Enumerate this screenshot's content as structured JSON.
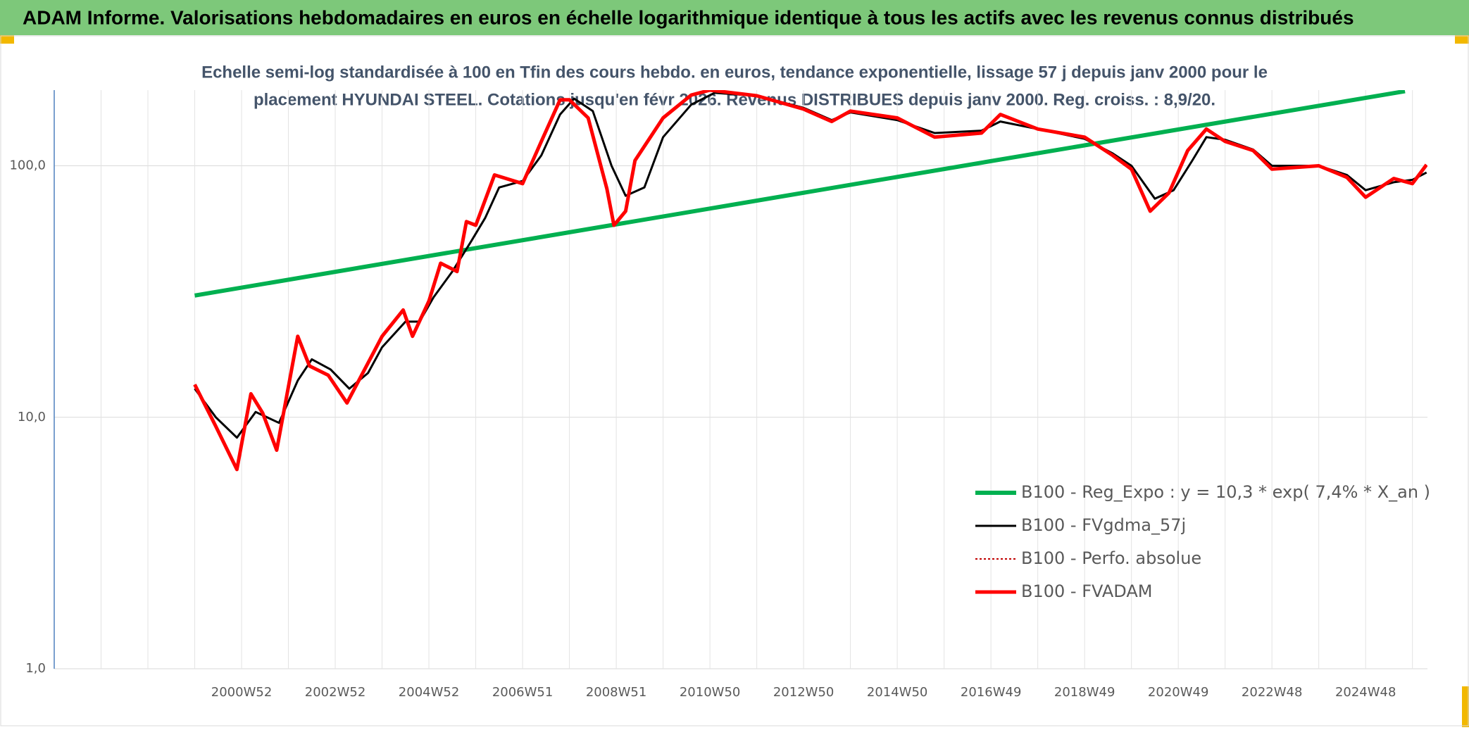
{
  "chart_data": {
    "type": "line",
    "title": "ADAM Informe. Valorisations hebdomadaires en euros en échelle logarithmique identique à tous les actifs avec les revenus connus distribués",
    "subtitle": [
      "Echelle semi-log standardisée à 100 en Tfin des cours hebdo. en euros, tendance exponentielle, lissage 57 j depuis janv 2000 pour le",
      "placement HYUNDAI STEEL. Cotations jusqu'en févr 2026. Revenus DISTRIBUES depuis janv 2000. Reg. croiss. : 8,9/20."
    ],
    "log_scale": true,
    "grid": true,
    "ylim": [
      1,
      200
    ],
    "yticks": [
      {
        "value": 1,
        "label": "1,0"
      },
      {
        "value": 10,
        "label": "10,0"
      },
      {
        "value": 100,
        "label": "100,0"
      }
    ],
    "xlim": [
      1997,
      2026.32
    ],
    "xgrid": [
      1998,
      1999,
      2000,
      2001,
      2002,
      2003,
      2004,
      2005,
      2006,
      2007,
      2008,
      2009,
      2010,
      2011,
      2012,
      2013,
      2014,
      2015,
      2016,
      2017,
      2018,
      2019,
      2020,
      2021,
      2022,
      2023,
      2024,
      2025,
      2026
    ],
    "xticks": [
      {
        "value": 2001,
        "label": "2000W52"
      },
      {
        "value": 2003,
        "label": "2002W52"
      },
      {
        "value": 2005,
        "label": "2004W52"
      },
      {
        "value": 2007,
        "label": "2006W51"
      },
      {
        "value": 2009,
        "label": "2008W51"
      },
      {
        "value": 2011,
        "label": "2010W50"
      },
      {
        "value": 2013,
        "label": "2012W50"
      },
      {
        "value": 2015,
        "label": "2014W50"
      },
      {
        "value": 2017,
        "label": "2016W49"
      },
      {
        "value": 2019,
        "label": "2018W49"
      },
      {
        "value": 2021,
        "label": "2020W49"
      },
      {
        "value": 2023,
        "label": "2022W48"
      },
      {
        "value": 2025,
        "label": "2024W48"
      }
    ],
    "series": [
      {
        "name": "B100 - Reg_Expo : y = 10,3 * exp( 7,4% *  X_an )",
        "color": "#00b050",
        "width": 6,
        "dash": "none",
        "x": [
          2000,
          2025.84
        ],
        "values": [
          30.5,
          198
        ]
      },
      {
        "name": "B100 - FVgdma_57j",
        "color": "#000000",
        "width": 3,
        "dash": "none",
        "x": [
          2000,
          2000.45,
          2000.9,
          2001.3,
          2001.8,
          2002.2,
          2002.5,
          2002.9,
          2003.3,
          2003.7,
          2004.0,
          2004.5,
          2004.8,
          2005.1,
          2005.5,
          2005.9,
          2006.2,
          2006.5,
          2007.0,
          2007.4,
          2007.8,
          2008.1,
          2008.5,
          2008.9,
          2009.2,
          2009.6,
          2010.0,
          2010.6,
          2011.1,
          2012.0,
          2013.0,
          2013.6,
          2014.0,
          2015.0,
          2015.8,
          2016.8,
          2017.2,
          2018.0,
          2019.0,
          2019.6,
          2020.0,
          2020.5,
          2020.9,
          2021.3,
          2021.6,
          2022.0,
          2022.6,
          2023.0,
          2024.0,
          2024.6,
          2025.0,
          2025.6,
          2026.0,
          2026.3
        ],
        "values": [
          13,
          10,
          8.3,
          10.5,
          9.5,
          14,
          17,
          15.5,
          13,
          15,
          19,
          24,
          24,
          30,
          38,
          50,
          62,
          82,
          87,
          110,
          160,
          185,
          165,
          100,
          76,
          82,
          130,
          175,
          195,
          190,
          170,
          152,
          163,
          152,
          135,
          138,
          150,
          140,
          128,
          112,
          100,
          74,
          80,
          105,
          130,
          127,
          116,
          100,
          100,
          92,
          80,
          86,
          88,
          94
        ]
      },
      {
        "name": "B100 - Perfo. absolue",
        "color": "#c00000",
        "width": 2,
        "dash": "3,3",
        "x": [
          2000,
          2000.45,
          2000.9,
          2001.2,
          2001.45,
          2001.75,
          2002.2,
          2002.45,
          2002.85,
          2003.25,
          2004.0,
          2004.45,
          2004.65,
          2005.0,
          2005.25,
          2005.6,
          2005.8,
          2006.0,
          2006.4,
          2007.0,
          2007.4,
          2007.8,
          2008.0,
          2008.4,
          2008.8,
          2008.95,
          2009.2,
          2009.4,
          2010.0,
          2010.6,
          2011.0,
          2012.0,
          2013.0,
          2013.6,
          2014.0,
          2015.0,
          2015.8,
          2016.8,
          2017.2,
          2018.0,
          2019.0,
          2019.6,
          2020.0,
          2020.4,
          2020.8,
          2021.2,
          2021.6,
          2022.0,
          2022.6,
          2023.0,
          2024.0,
          2024.6,
          2025.0,
          2025.6,
          2026.0,
          2026.3
        ],
        "values": [
          13.5,
          9.2,
          6.2,
          12.4,
          10.4,
          7.4,
          21,
          16,
          14.7,
          11.4,
          21,
          26.7,
          21,
          29,
          41,
          38,
          60,
          58,
          92,
          85,
          125,
          183,
          183,
          155,
          81,
          58,
          66,
          105,
          155,
          191,
          200,
          190,
          168,
          150,
          165,
          155,
          130,
          135,
          160,
          140,
          130,
          110,
          97,
          66,
          78,
          115,
          140,
          125,
          115,
          97,
          100,
          90,
          75,
          89,
          85,
          101
        ]
      },
      {
        "name": "B100 - FVADAM",
        "color": "#ff0000",
        "width": 5,
        "dash": "none",
        "x": [
          2000,
          2000.45,
          2000.9,
          2001.2,
          2001.45,
          2001.75,
          2002.2,
          2002.45,
          2002.85,
          2003.25,
          2004.0,
          2004.45,
          2004.65,
          2005.0,
          2005.25,
          2005.6,
          2005.8,
          2006.0,
          2006.4,
          2007.0,
          2007.4,
          2007.8,
          2008.0,
          2008.4,
          2008.8,
          2008.95,
          2009.2,
          2009.4,
          2010.0,
          2010.6,
          2011.0,
          2012.0,
          2013.0,
          2013.6,
          2014.0,
          2015.0,
          2015.8,
          2016.8,
          2017.2,
          2018.0,
          2019.0,
          2019.6,
          2020.0,
          2020.4,
          2020.8,
          2021.2,
          2021.6,
          2022.0,
          2022.6,
          2023.0,
          2024.0,
          2024.6,
          2025.0,
          2025.6,
          2026.0,
          2026.3
        ],
        "values": [
          13.5,
          9.2,
          6.2,
          12.4,
          10.4,
          7.4,
          21,
          16,
          14.7,
          11.4,
          21,
          26.7,
          21,
          29,
          41,
          38,
          60,
          58,
          92,
          85,
          125,
          183,
          183,
          155,
          81,
          58,
          66,
          105,
          155,
          191,
          200,
          190,
          168,
          150,
          165,
          155,
          130,
          135,
          160,
          140,
          130,
          110,
          97,
          66,
          78,
          115,
          140,
          125,
          115,
          97,
          100,
          90,
          75,
          89,
          85,
          101
        ]
      }
    ]
  }
}
